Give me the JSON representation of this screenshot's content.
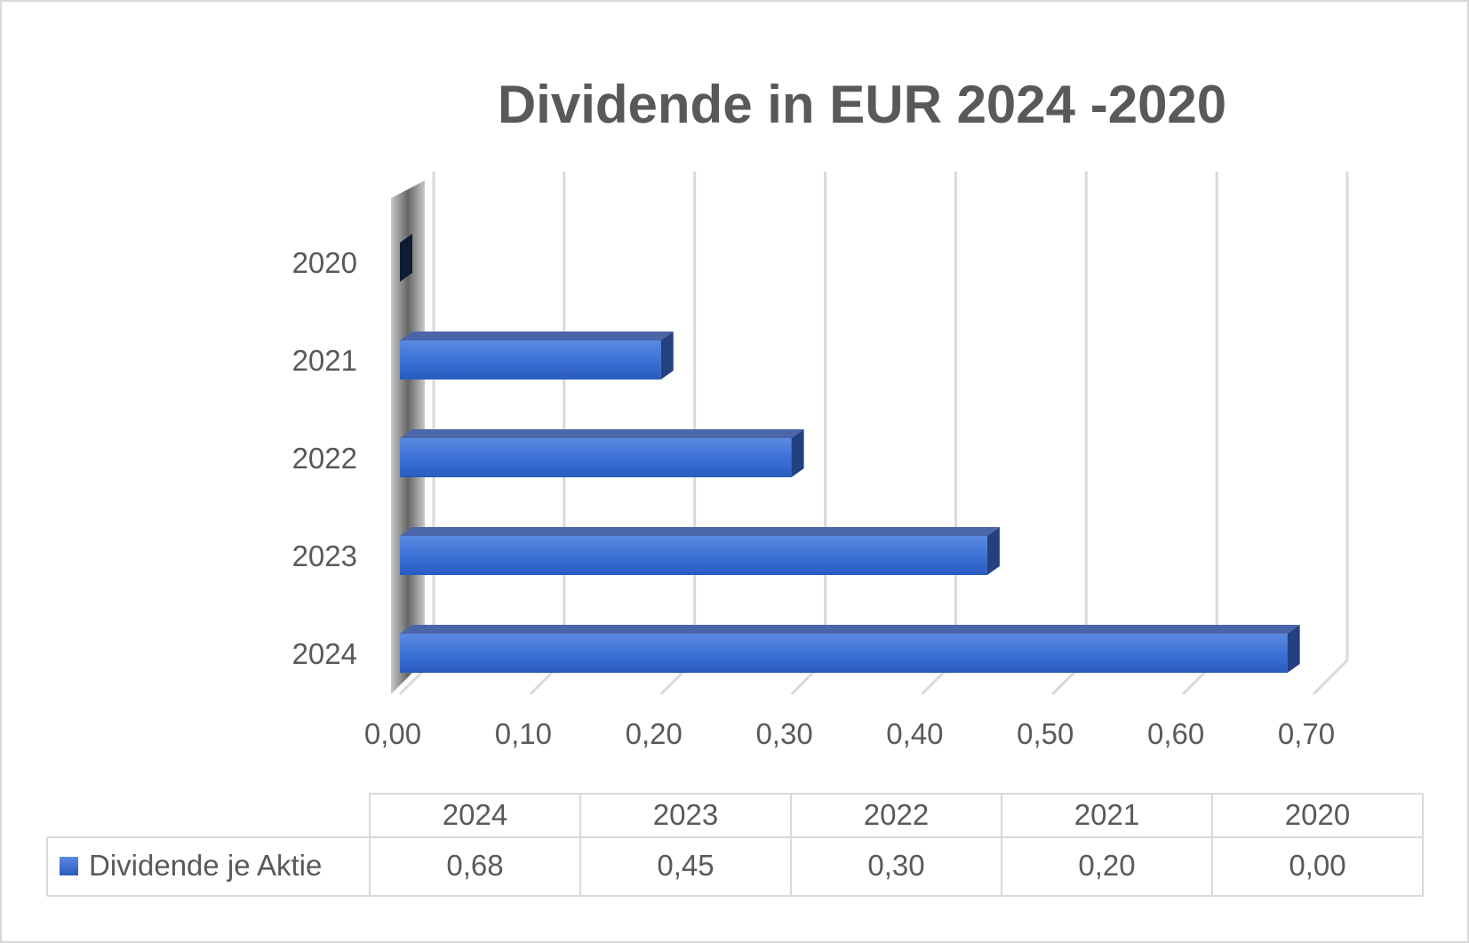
{
  "chart_data": {
    "type": "bar",
    "orientation": "horizontal",
    "title": "Dividende in EUR 2024 -2020",
    "categories": [
      "2020",
      "2021",
      "2022",
      "2023",
      "2024"
    ],
    "series": [
      {
        "name": "Dividende je Aktie",
        "values": [
          0.0,
          0.2,
          0.3,
          0.45,
          0.68
        ],
        "color": "#3a6fd0"
      }
    ],
    "xlim": [
      0,
      0.7
    ],
    "x_ticks": [
      "0,00",
      "0,10",
      "0,20",
      "0,30",
      "0,40",
      "0,50",
      "0,60",
      "0,70"
    ],
    "grid": true,
    "style": "3d",
    "data_table": {
      "headers": [
        "2024",
        "2023",
        "2022",
        "2021",
        "2020"
      ],
      "row_label": "Dividende je Aktie",
      "values": [
        "0,68",
        "0,45",
        "0,30",
        "0,20",
        "0,00"
      ]
    }
  }
}
